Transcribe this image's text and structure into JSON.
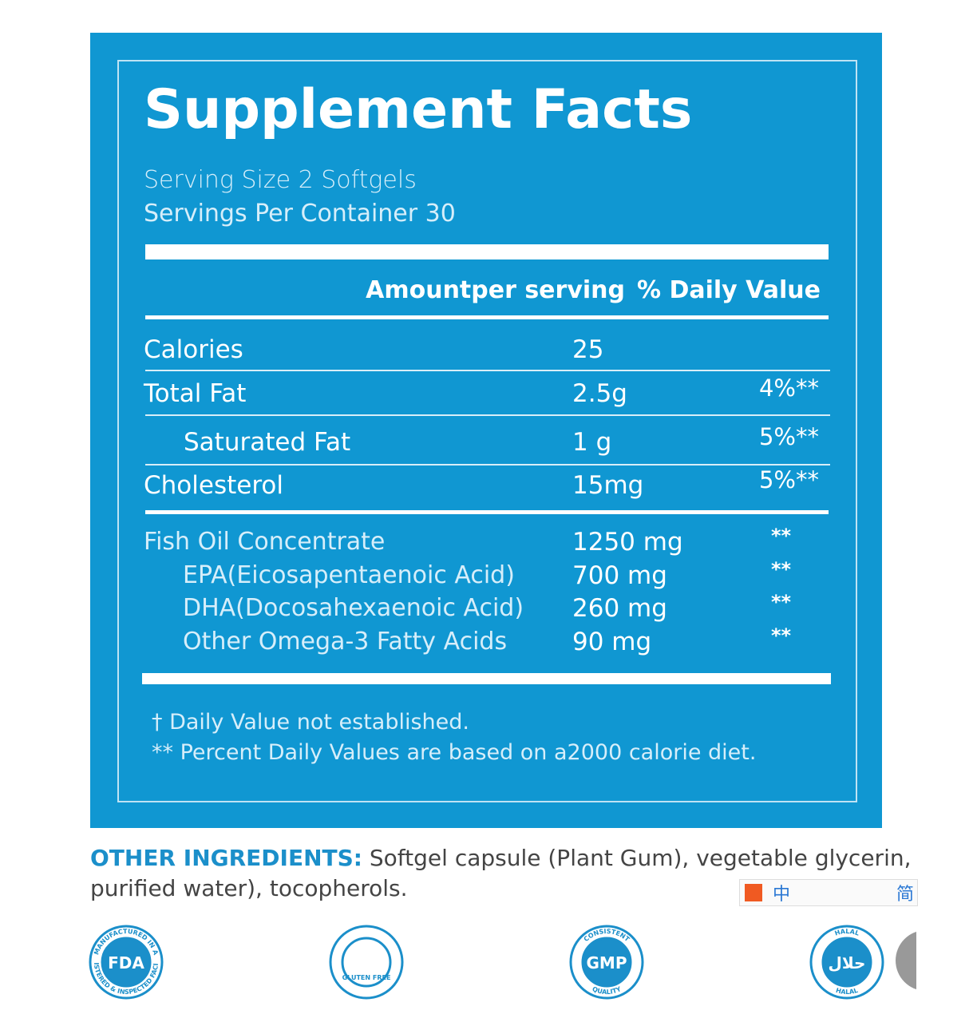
{
  "title": "Supplement Facts",
  "serving": [
    "Serving Size 2 Softgels",
    "Servings Per Container 30"
  ],
  "header": {
    "amount": "Amountper serving",
    "daily_value": "% Daily Value"
  },
  "rows": [
    {
      "name": "Calories",
      "amount": "25"
    },
    {
      "name": "Total Fat",
      "amount": "2.5g",
      "dv": "4%**"
    },
    {
      "name": "Saturated Fat",
      "amount": "1 g",
      "dv": "5%**"
    },
    {
      "name": "Cholesterol",
      "amount": "15mg",
      "dv": "5%**"
    }
  ],
  "ingredients": [
    {
      "name": "Fish Oil Concentrate",
      "amount": "1250 mg",
      "dv": "**"
    },
    {
      "name": "EPA(Eicosapentaenoic Acid)",
      "amount": "700 mg",
      "dv": "**"
    },
    {
      "name": "DHA(Docosahexaenoic Acid)",
      "amount": "260 mg",
      "dv": "**"
    },
    {
      "name": "Other Omega-3 Fatty Acids",
      "amount": "90 mg",
      "dv": "**"
    }
  ],
  "footnotes": [
    "† Daily Value not established.",
    "** Percent Daily Values are based on a2000 calorie diet."
  ],
  "other_ingredients": {
    "label": "OTHER INGREDIENTS:",
    "lines": [
      "Softgel capsule (Plant Gum), vegetable glycerin,",
      "purified water), tocopherols."
    ]
  },
  "badges": [
    {
      "label": "FDA",
      "ring_top": "MANUFACTURED IN A",
      "ring_bottom": "REGISTERED & INSPECTED FACILITY"
    },
    {
      "label": "GLUTEN FREE"
    },
    {
      "label": "GMP",
      "ring_top": "CONSISTENT",
      "ring_bottom": "QUALITY"
    },
    {
      "label": "حلال",
      "ring_top": "HALAL",
      "ring_bottom": "HALAL"
    }
  ],
  "ime": [
    "中",
    "简"
  ]
}
